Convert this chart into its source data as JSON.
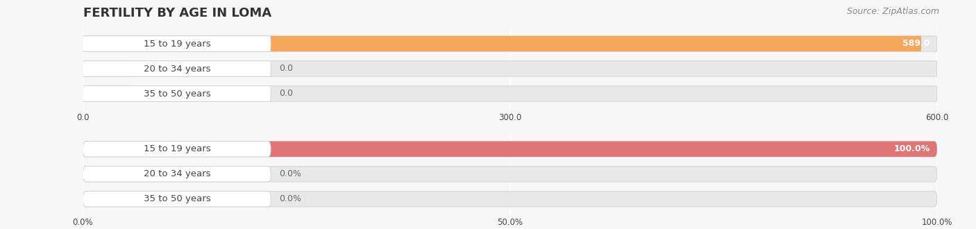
{
  "title": "FERTILITY BY AGE IN LOMA",
  "source": "Source: ZipAtlas.com",
  "top_chart": {
    "categories": [
      "15 to 19 years",
      "20 to 34 years",
      "35 to 50 years"
    ],
    "values": [
      589.0,
      0.0,
      0.0
    ],
    "max_val": 600.0,
    "xlim": [
      0,
      600.0
    ],
    "xticks": [
      0.0,
      300.0,
      600.0
    ],
    "bar_color": "#F5A85A",
    "bar_color_zero": "#E8C49A",
    "value_labels": [
      "589.0",
      "0.0",
      "0.0"
    ]
  },
  "bottom_chart": {
    "categories": [
      "15 to 19 years",
      "20 to 34 years",
      "35 to 50 years"
    ],
    "values": [
      100.0,
      0.0,
      0.0
    ],
    "max_val": 100.0,
    "xlim": [
      0,
      100.0
    ],
    "xticks": [
      0.0,
      50.0,
      100.0
    ],
    "xtick_labels": [
      "0.0%",
      "50.0%",
      "100.0%"
    ],
    "bar_color": "#E07575",
    "bar_color_zero": "#EAA0A0",
    "value_labels": [
      "100.0%",
      "0.0%",
      "0.0%"
    ]
  },
  "bg_color": "#f7f7f7",
  "bar_bg_color": "#e8e8e8",
  "bar_bg_border": "#d8d8d8",
  "white_section_color": "#ffffff",
  "label_color": "#444444",
  "value_color_on_bar": "#ffffff",
  "value_color_off_bar": "#666666",
  "title_fontsize": 13,
  "source_fontsize": 9,
  "label_fontsize": 9.5,
  "tick_fontsize": 8.5,
  "value_fontsize": 9
}
